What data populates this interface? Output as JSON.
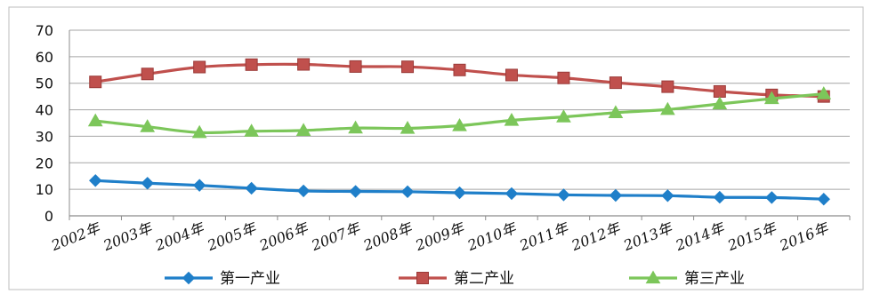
{
  "chart_data": {
    "type": "line",
    "title": "",
    "xlabel": "",
    "ylabel": "",
    "ylim": [
      0,
      70
    ],
    "yticks": [
      0,
      10,
      20,
      30,
      40,
      50,
      60,
      70
    ],
    "grid": true,
    "legend_position": "bottom",
    "categories": [
      "2002年",
      "2003年",
      "2004年",
      "2005年",
      "2006年",
      "2007年",
      "2008年",
      "2009年",
      "2010年",
      "2011年",
      "2012年",
      "2013年",
      "2014年",
      "2015年",
      "2016年"
    ],
    "series": [
      {
        "name": "第一产业",
        "color": "#1f7fc9",
        "marker": "diamond",
        "values": [
          13.3,
          12.3,
          11.5,
          10.4,
          9.4,
          9.2,
          9.1,
          8.7,
          8.4,
          7.9,
          7.7,
          7.6,
          7.0,
          6.9,
          6.3
        ]
      },
      {
        "name": "第二产业",
        "color": "#c0504d",
        "marker": "square",
        "values": [
          50.5,
          53.5,
          56.1,
          57.0,
          57.1,
          56.3,
          56.2,
          55.0,
          53.1,
          52.0,
          50.2,
          48.7,
          46.9,
          45.6,
          45.0
        ]
      },
      {
        "name": "第三产业",
        "color": "#7cc65a",
        "marker": "triangle",
        "values": [
          35.8,
          33.6,
          31.4,
          31.9,
          32.2,
          33.1,
          33.0,
          34.0,
          36.0,
          37.3,
          38.9,
          40.1,
          42.2,
          44.2,
          46.0
        ]
      }
    ]
  }
}
